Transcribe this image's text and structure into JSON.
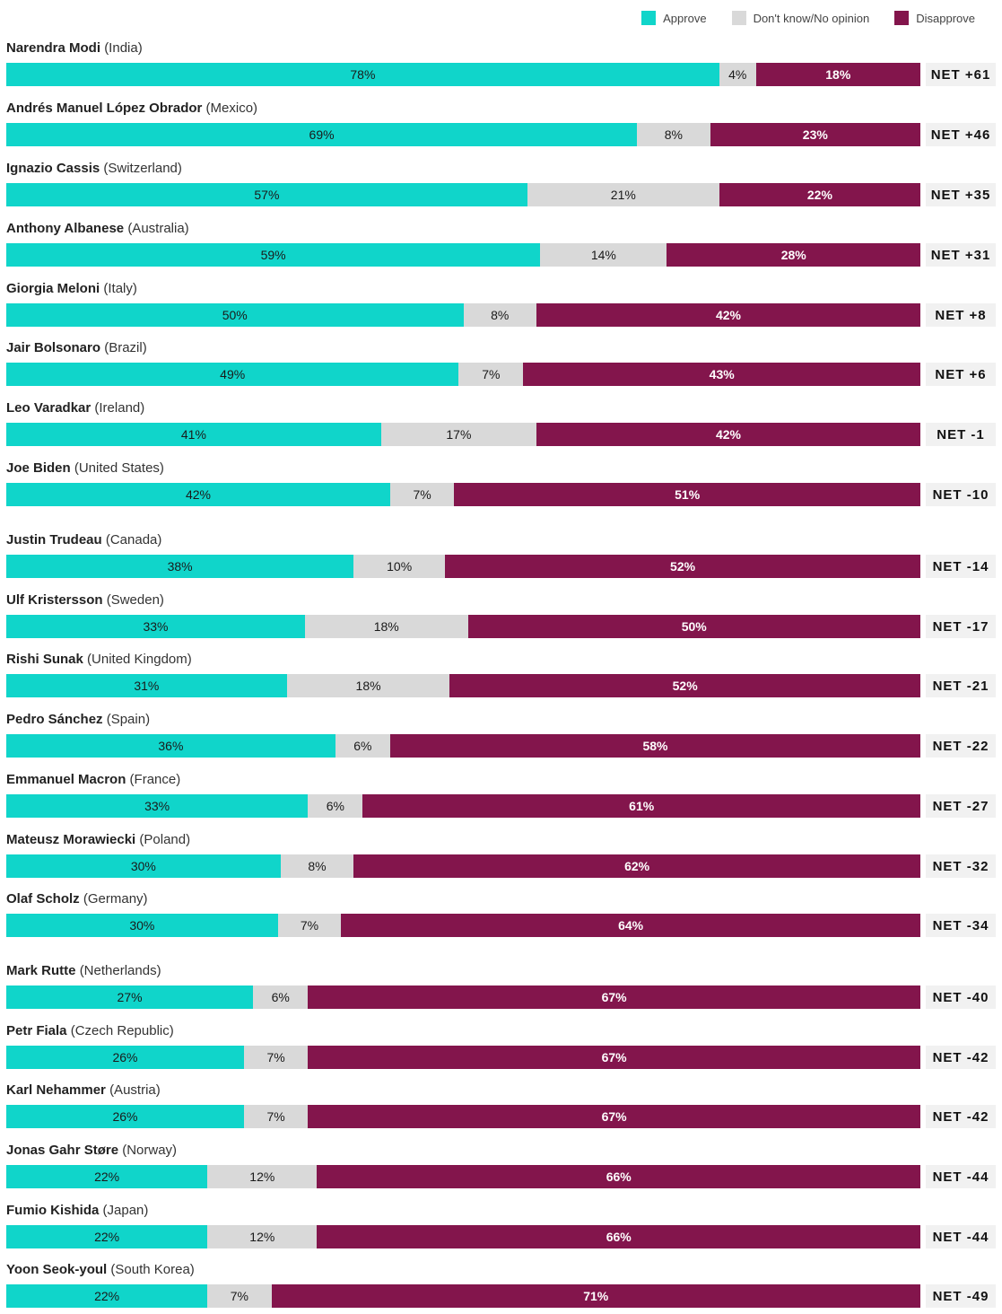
{
  "legend": {
    "approve": "Approve",
    "dont_know": "Don't know/No opinion",
    "disapprove": "Disapprove"
  },
  "colors": {
    "approve": "#10d5ca",
    "dont_know": "#d9d9d9",
    "disapprove": "#83154c",
    "net_bg": "#f1f1f1"
  },
  "chart_data": {
    "type": "bar",
    "orientation": "horizontal-stacked",
    "units": "percent",
    "series_names": [
      "Approve",
      "Don't know/No opinion",
      "Disapprove"
    ],
    "rows": [
      {
        "name": "Narendra Modi",
        "country": "(India)",
        "approve": 78,
        "dont_know": 4,
        "disapprove": 18,
        "net": "NET +61"
      },
      {
        "name": "Andrés Manuel López Obrador",
        "country": "(Mexico)",
        "approve": 69,
        "dont_know": 8,
        "disapprove": 23,
        "net": "NET +46"
      },
      {
        "name": "Ignazio Cassis",
        "country": "(Switzerland)",
        "approve": 57,
        "dont_know": 21,
        "disapprove": 22,
        "net": "NET +35"
      },
      {
        "name": "Anthony Albanese",
        "country": "(Australia)",
        "approve": 59,
        "dont_know": 14,
        "disapprove": 28,
        "net": "NET +31"
      },
      {
        "name": "Giorgia Meloni",
        "country": "(Italy)",
        "approve": 50,
        "dont_know": 8,
        "disapprove": 42,
        "net": "NET +8"
      },
      {
        "name": "Jair Bolsonaro",
        "country": "(Brazil)",
        "approve": 49,
        "dont_know": 7,
        "disapprove": 43,
        "net": "NET +6"
      },
      {
        "name": "Leo Varadkar",
        "country": "(Ireland)",
        "approve": 41,
        "dont_know": 17,
        "disapprove": 42,
        "net": "NET -1"
      },
      {
        "name": "Joe Biden",
        "country": "(United States)",
        "approve": 42,
        "dont_know": 7,
        "disapprove": 51,
        "net": "NET -10"
      },
      {
        "name": "Justin Trudeau",
        "country": "(Canada)",
        "approve": 38,
        "dont_know": 10,
        "disapprove": 52,
        "net": "NET -14"
      },
      {
        "name": "Ulf Kristersson",
        "country": "(Sweden)",
        "approve": 33,
        "dont_know": 18,
        "disapprove": 50,
        "net": "NET -17"
      },
      {
        "name": "Rishi Sunak",
        "country": "(United Kingdom)",
        "approve": 31,
        "dont_know": 18,
        "disapprove": 52,
        "net": "NET -21"
      },
      {
        "name": "Pedro Sánchez",
        "country": "(Spain)",
        "approve": 36,
        "dont_know": 6,
        "disapprove": 58,
        "net": "NET -22"
      },
      {
        "name": "Emmanuel Macron",
        "country": "(France)",
        "approve": 33,
        "dont_know": 6,
        "disapprove": 61,
        "net": "NET -27"
      },
      {
        "name": "Mateusz Morawiecki",
        "country": "(Poland)",
        "approve": 30,
        "dont_know": 8,
        "disapprove": 62,
        "net": "NET -32"
      },
      {
        "name": "Olaf Scholz",
        "country": "(Germany)",
        "approve": 30,
        "dont_know": 7,
        "disapprove": 64,
        "net": "NET -34"
      },
      {
        "name": "Mark Rutte",
        "country": "(Netherlands)",
        "approve": 27,
        "dont_know": 6,
        "disapprove": 67,
        "net": "NET -40"
      },
      {
        "name": "Petr Fiala",
        "country": "(Czech Republic)",
        "approve": 26,
        "dont_know": 7,
        "disapprove": 67,
        "net": "NET -42"
      },
      {
        "name": "Karl Nehammer",
        "country": "(Austria)",
        "approve": 26,
        "dont_know": 7,
        "disapprove": 67,
        "net": "NET -42"
      },
      {
        "name": "Jonas Gahr Støre",
        "country": "(Norway)",
        "approve": 22,
        "dont_know": 12,
        "disapprove": 66,
        "net": "NET -44"
      },
      {
        "name": "Fumio Kishida",
        "country": "(Japan)",
        "approve": 22,
        "dont_know": 12,
        "disapprove": 66,
        "net": "NET -44"
      },
      {
        "name": "Yoon Seok-youl",
        "country": "(South Korea)",
        "approve": 22,
        "dont_know": 7,
        "disapprove": 71,
        "net": "NET -49"
      }
    ]
  }
}
